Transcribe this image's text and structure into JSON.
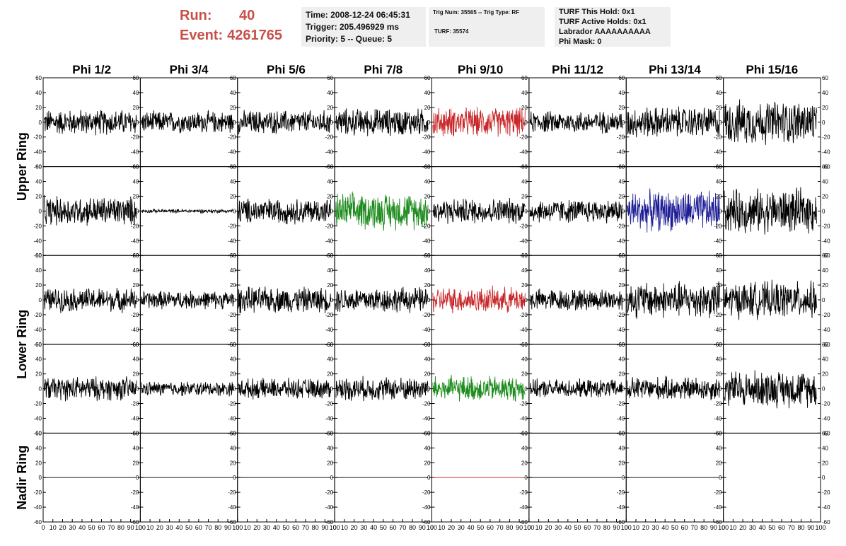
{
  "header": {
    "run_label": "Run:",
    "run_value": "40",
    "event_label": "Event:",
    "event_value": "4261765"
  },
  "info1": {
    "line1": "Time: 2008-12-24 06:45:31",
    "line2": "Trigger: 205.496929 ms",
    "line3": "Priority: 5 -- Queue: 5"
  },
  "info2": {
    "line1": "Trig Num: 35565 -- Trig Type: RF",
    "line2": "TURF: 35574"
  },
  "info3": {
    "line1": "TURF This Hold: 0x1",
    "line2": "TURF Active Holds: 0x1",
    "line3": "Labrador AAAAAAAAAA",
    "line4": "Phi Mask: 0"
  },
  "chart_data": {
    "type": "line",
    "columns": [
      "Phi 1/2",
      "Phi 3/4",
      "Phi 5/6",
      "Phi 7/8",
      "Phi 9/10",
      "Phi 11/12",
      "Phi 13/14",
      "Phi 15/16"
    ],
    "ring_labels": [
      "Upper Ring",
      "Lower Ring",
      "Nadir Ring"
    ],
    "xlim": [
      0,
      100
    ],
    "ylim": [
      -60,
      60
    ],
    "x_ticks": [
      0,
      10,
      20,
      30,
      40,
      50,
      60,
      70,
      80,
      90,
      100
    ],
    "y_ticks": [
      -60,
      -40,
      -20,
      0,
      20,
      40,
      60
    ],
    "colors": {
      "default": "#000000",
      "red": "#c8282a",
      "green": "#1e8c1e",
      "blue": "#1e1e96"
    },
    "panel_rows": [
      {
        "ring": "Upper Ring",
        "amplitudes": [
          14,
          12,
          13,
          15,
          16,
          12,
          17,
          24
        ],
        "colors": [
          "default",
          "default",
          "default",
          "default",
          "red",
          "default",
          "default",
          "default"
        ]
      },
      {
        "ring": "Upper Ring",
        "amplitudes": [
          16,
          2,
          14,
          20,
          14,
          13,
          22,
          24
        ],
        "colors": [
          "default",
          "default",
          "default",
          "green",
          "default",
          "default",
          "blue",
          "default"
        ]
      },
      {
        "ring": "Lower Ring",
        "amplitudes": [
          13,
          10,
          14,
          14,
          14,
          12,
          20,
          20
        ],
        "colors": [
          "default",
          "default",
          "default",
          "default",
          "red",
          "default",
          "default",
          "default"
        ]
      },
      {
        "ring": "Lower Ring",
        "amplitudes": [
          13,
          8,
          11,
          13,
          14,
          10,
          13,
          20
        ],
        "colors": [
          "default",
          "default",
          "default",
          "default",
          "green",
          "default",
          "default",
          "default"
        ]
      },
      {
        "ring": "Nadir Ring",
        "amplitudes": [
          0,
          0,
          0,
          0,
          0,
          0,
          0,
          0
        ],
        "colors": [
          "default",
          "default",
          "default",
          "default",
          "red",
          "default",
          "default",
          "default"
        ],
        "has_trace": [
          true,
          true,
          true,
          true,
          true,
          true,
          true,
          false
        ]
      }
    ]
  }
}
